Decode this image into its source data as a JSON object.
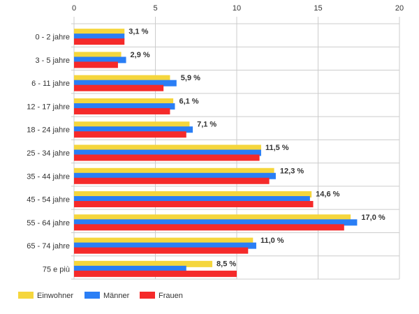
{
  "chart_data": {
    "type": "bar",
    "orientation": "horizontal",
    "categories": [
      "0 - 2 jahre",
      "3 - 5 jahre",
      "6 - 11 jahre",
      "12 - 17 jahre",
      "18 - 24 jahre",
      "25 - 34 jahre",
      "35 - 44 jahre",
      "45 - 54 jahre",
      "55 - 64 jahre",
      "65 - 74 jahre",
      "75 e più"
    ],
    "series": [
      {
        "name": "Einwohner",
        "color": "#f5d63d",
        "values": [
          3.1,
          2.9,
          5.9,
          6.1,
          7.1,
          11.5,
          12.3,
          14.6,
          17.0,
          11.0,
          8.5
        ]
      },
      {
        "name": "Männer",
        "color": "#2a7ef5",
        "values": [
          3.1,
          3.2,
          6.3,
          6.2,
          7.3,
          11.5,
          12.4,
          14.5,
          17.4,
          11.2,
          6.9
        ]
      },
      {
        "name": "Frauen",
        "color": "#f52a2a",
        "values": [
          3.1,
          2.7,
          5.5,
          5.9,
          6.9,
          11.4,
          12.0,
          14.7,
          16.6,
          10.7,
          10.0
        ]
      }
    ],
    "data_labels": [
      "3,1 %",
      "2,9 %",
      "5,9 %",
      "6,1 %",
      "7,1 %",
      "11,5 %",
      "12,3 %",
      "14,6 %",
      "17,0 %",
      "11,0 %",
      "8,5 %"
    ],
    "x_ticks": [
      "0",
      "5",
      "10",
      "15",
      "20"
    ],
    "xlim": [
      0,
      20
    ],
    "axis_position": "top",
    "grid": true,
    "legend_position": "bottom-left",
    "gridline_color": "#cccccc"
  }
}
